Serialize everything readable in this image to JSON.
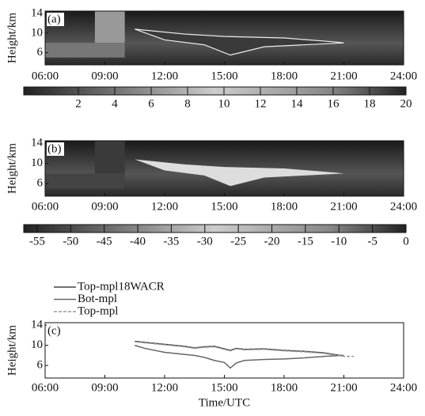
{
  "chart_data": [
    {
      "type": "heatmap",
      "label": "(a)",
      "y_label": "Height/km",
      "xlim": [
        6,
        24
      ],
      "xticks": [
        {
          "value": 6,
          "label": "06:00"
        },
        {
          "value": 9,
          "label": "09:00"
        },
        {
          "value": 12,
          "label": "12:00"
        },
        {
          "value": 15,
          "label": "15:00"
        },
        {
          "value": 18,
          "label": "18:00"
        },
        {
          "value": 21,
          "label": "21:00"
        },
        {
          "value": 24,
          "label": "24:00"
        }
      ],
      "ylim": [
        3.5,
        14.5
      ],
      "yticks": [
        6,
        10,
        14
      ],
      "colorbar": {
        "lim": [
          -1,
          20
        ],
        "ticks": [
          2,
          4,
          6,
          8,
          10,
          12,
          14,
          16,
          18,
          20
        ]
      }
    },
    {
      "type": "heatmap",
      "label": "(b)",
      "y_label": "Height/km",
      "xlim": [
        6,
        24
      ],
      "xticks": [
        {
          "value": 6,
          "label": "06:00"
        },
        {
          "value": 9,
          "label": "09:00"
        },
        {
          "value": 12,
          "label": "12:00"
        },
        {
          "value": 15,
          "label": "15:00"
        },
        {
          "value": 18,
          "label": "18:00"
        },
        {
          "value": 21,
          "label": "21:00"
        },
        {
          "value": 24,
          "label": "24:00"
        }
      ],
      "ylim": [
        3.5,
        14.5
      ],
      "yticks": [
        6,
        10,
        14
      ],
      "colorbar": {
        "lim": [
          -57,
          0
        ],
        "ticks": [
          -55,
          -50,
          -45,
          -40,
          -35,
          -30,
          -25,
          -20,
          -15,
          -10,
          -5,
          0
        ]
      }
    },
    {
      "type": "line",
      "label": "(c)",
      "y_label": "Height/km",
      "x_label": "Time/UTC",
      "xlim": [
        6,
        24
      ],
      "xticks": [
        {
          "value": 6,
          "label": "06:00"
        },
        {
          "value": 9,
          "label": "09:00"
        },
        {
          "value": 12,
          "label": "12:00"
        },
        {
          "value": 15,
          "label": "15:00"
        },
        {
          "value": 18,
          "label": "18:00"
        },
        {
          "value": 21,
          "label": "21:00"
        },
        {
          "value": 24,
          "label": "24:00"
        }
      ],
      "ylim": [
        3.5,
        14.5
      ],
      "yticks": [
        6,
        10,
        14
      ],
      "x": [
        10.5,
        11,
        12,
        13,
        13.5,
        14,
        14.5,
        15,
        15.3,
        15.6,
        16,
        17,
        18,
        19,
        20,
        20.5,
        21,
        21.5
      ],
      "series": [
        {
          "name": "Top-mpl18WACR",
          "color": "#444444",
          "dashed": false,
          "values": [
            10.8,
            10.6,
            10.2,
            9.8,
            9.5,
            9.7,
            9.8,
            9.3,
            9.0,
            9.4,
            9.2,
            9.3,
            9.0,
            8.8,
            8.5,
            8.2,
            7.9,
            null
          ]
        },
        {
          "name": "Bot-mpl",
          "color": "#666666",
          "dashed": false,
          "values": [
            10.0,
            9.4,
            8.6,
            8.2,
            8.0,
            7.6,
            7.0,
            6.6,
            5.5,
            6.5,
            7.0,
            7.2,
            7.3,
            7.5,
            7.8,
            7.9,
            8.0,
            null
          ]
        },
        {
          "name": "Top-mpl",
          "color": "#999999",
          "dashed": true,
          "values": [
            10.7,
            10.5,
            10.1,
            9.7,
            9.4,
            9.6,
            9.7,
            9.2,
            8.9,
            9.3,
            9.1,
            9.2,
            8.9,
            8.7,
            8.4,
            8.1,
            7.8,
            7.8
          ]
        }
      ]
    }
  ]
}
